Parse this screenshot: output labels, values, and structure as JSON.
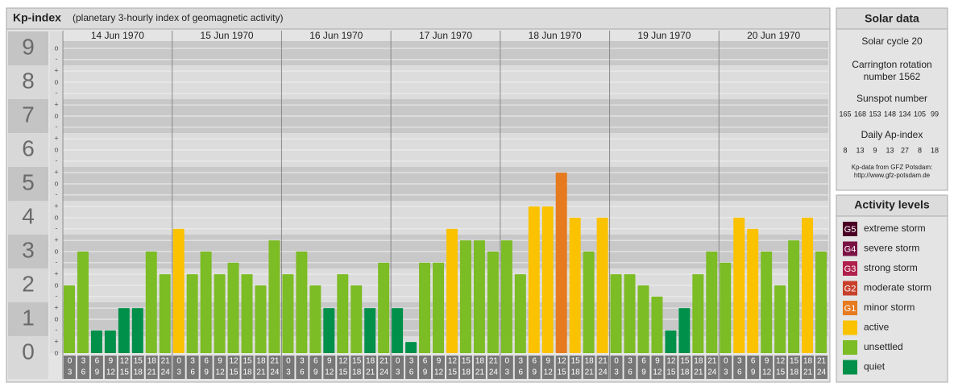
{
  "chart_data": {
    "type": "bar",
    "title": "Kp-index",
    "subtitle": "(planetary 3-hourly index of geomagnetic activity)",
    "days": [
      "14 Jun 1970",
      "15 Jun 1970",
      "16 Jun 1970",
      "17 Jun 1970",
      "18 Jun 1970",
      "19 Jun 1970",
      "20 Jun 1970"
    ],
    "hours": [
      0,
      3,
      6,
      9,
      12,
      15,
      18,
      21,
      24
    ],
    "values": [
      2,
      3,
      0.67,
      0.67,
      1.33,
      1.33,
      3,
      2.33,
      3.67,
      2.33,
      3,
      2.33,
      2.67,
      2.33,
      2,
      3.33,
      2.33,
      3,
      2,
      1.33,
      2.33,
      2,
      1.33,
      2.67,
      1.33,
      0.33,
      2.67,
      2.67,
      3.67,
      3.33,
      3.33,
      3,
      3.33,
      2.33,
      4.33,
      4.33,
      5.33,
      4,
      3,
      4,
      2.33,
      2.33,
      2,
      1.67,
      0.67,
      1.33,
      2.33,
      3,
      2.67,
      4,
      3.67,
      3,
      2,
      3.33,
      4,
      3
    ],
    "colors": [
      "#7cbc24",
      "#7cbc24",
      "#00904a",
      "#00904a",
      "#00904a",
      "#00904a",
      "#7cbc24",
      "#7cbc24",
      "#fac200",
      "#7cbc24",
      "#7cbc24",
      "#7cbc24",
      "#7cbc24",
      "#7cbc24",
      "#7cbc24",
      "#7cbc24",
      "#7cbc24",
      "#7cbc24",
      "#7cbc24",
      "#00904a",
      "#7cbc24",
      "#7cbc24",
      "#00904a",
      "#7cbc24",
      "#00904a",
      "#00904a",
      "#7cbc24",
      "#7cbc24",
      "#fac200",
      "#7cbc24",
      "#7cbc24",
      "#7cbc24",
      "#7cbc24",
      "#7cbc24",
      "#fac200",
      "#fac200",
      "#e57a1e",
      "#fac200",
      "#7cbc24",
      "#fac200",
      "#7cbc24",
      "#7cbc24",
      "#7cbc24",
      "#7cbc24",
      "#00904a",
      "#00904a",
      "#7cbc24",
      "#7cbc24",
      "#7cbc24",
      "#fac200",
      "#fac200",
      "#7cbc24",
      "#7cbc24",
      "#7cbc24",
      "#fac200",
      "#7cbc24"
    ],
    "ylim": [
      0,
      9.5
    ],
    "yticks": [
      0,
      1,
      2,
      3,
      4,
      5,
      6,
      7,
      8,
      9
    ],
    "minor_ticks": [
      {
        "value": 0,
        "label": "o"
      },
      {
        "value": 0.33,
        "label": "+"
      },
      {
        "value": 0.67,
        "label": "-"
      },
      {
        "value": 1,
        "label": "o"
      },
      {
        "value": 1.33,
        "label": "+"
      },
      {
        "value": 1.67,
        "label": "-"
      },
      {
        "value": 2,
        "label": "o"
      },
      {
        "value": 2.33,
        "label": "+"
      },
      {
        "value": 2.67,
        "label": "-"
      },
      {
        "value": 3,
        "label": "o"
      },
      {
        "value": 3.33,
        "label": "+"
      },
      {
        "value": 3.67,
        "label": "-"
      },
      {
        "value": 4,
        "label": "o"
      },
      {
        "value": 4.33,
        "label": "+"
      },
      {
        "value": 4.67,
        "label": "-"
      },
      {
        "value": 5,
        "label": "o"
      },
      {
        "value": 5.33,
        "label": "+"
      },
      {
        "value": 5.67,
        "label": "-"
      },
      {
        "value": 6,
        "label": "o"
      },
      {
        "value": 6.33,
        "label": "+"
      },
      {
        "value": 6.67,
        "label": "-"
      },
      {
        "value": 7,
        "label": "o"
      },
      {
        "value": 7.33,
        "label": "+"
      },
      {
        "value": 7.67,
        "label": "-"
      },
      {
        "value": 8,
        "label": "o"
      },
      {
        "value": 8.33,
        "label": "+"
      },
      {
        "value": 8.67,
        "label": "-"
      },
      {
        "value": 9,
        "label": "o"
      }
    ],
    "legend_title": "Activity levels",
    "legend": [
      {
        "badge": "G5",
        "label": "extreme storm",
        "color": "#4a0024"
      },
      {
        "badge": "G4",
        "label": "severe storm",
        "color": "#7a1244"
      },
      {
        "badge": "G3",
        "label": "strong storm",
        "color": "#b0204c"
      },
      {
        "badge": "G2",
        "label": "moderate storm",
        "color": "#c8402a"
      },
      {
        "badge": "G1",
        "label": "minor storm",
        "color": "#e57a1e"
      },
      {
        "label": "active",
        "color": "#fac200"
      },
      {
        "label": "unsettled",
        "color": "#7cbc24"
      },
      {
        "label": "quiet",
        "color": "#00904a"
      }
    ]
  },
  "solar_data": {
    "title": "Solar data",
    "cycle": "Solar cycle 20",
    "carrington": [
      "Carrington rotation",
      "number 1562"
    ],
    "sunspot_title": "Sunspot number",
    "sunspots": [
      165,
      168,
      153,
      148,
      134,
      105,
      99
    ],
    "ap_title": "Daily Ap-index",
    "ap": [
      8,
      13,
      9,
      13,
      27,
      8,
      18
    ],
    "source": [
      "Kp-data from GFZ Potsdam:",
      "http://www.gfz-potsdam.de"
    ]
  }
}
